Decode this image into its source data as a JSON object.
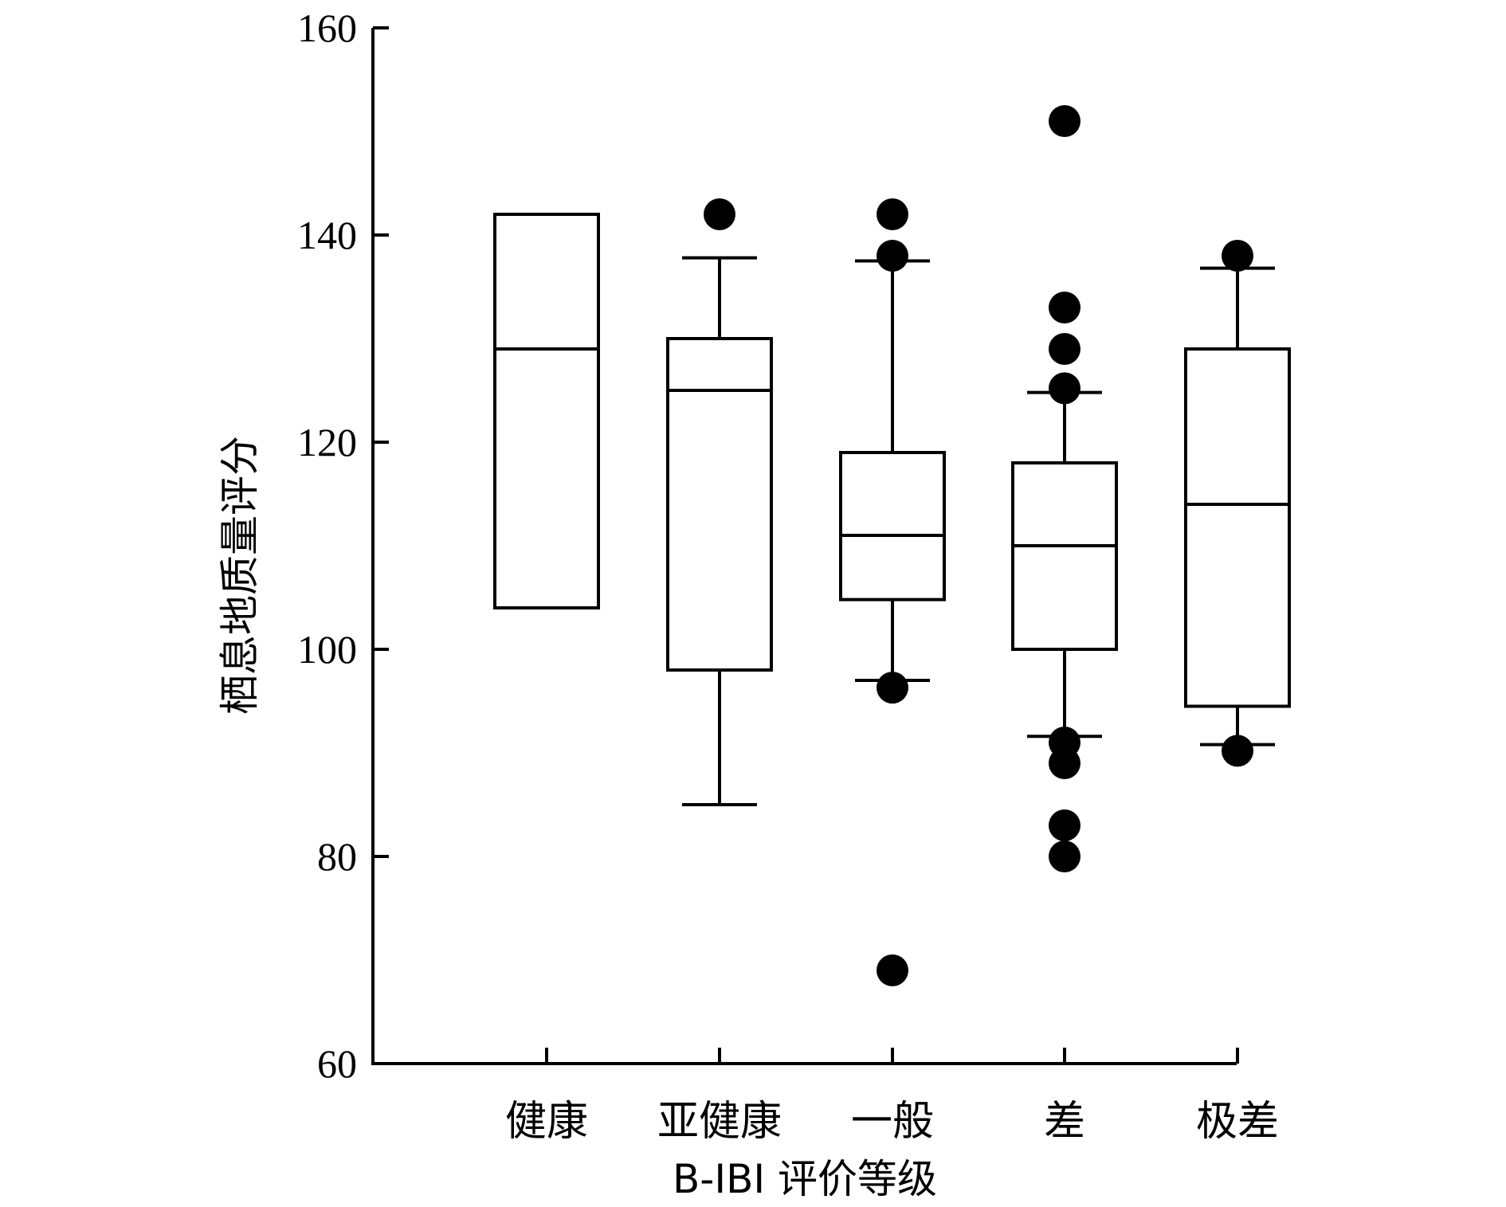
{
  "chart_data": {
    "type": "box",
    "xlabel": "B-IBI 评价等级",
    "ylabel": "栖息地质量评分",
    "ylim": [
      60,
      160
    ],
    "yticks": [
      60,
      80,
      100,
      120,
      140,
      160
    ],
    "categories": [
      "健康",
      "亚健康",
      "一般",
      "差",
      "极差"
    ],
    "boxes": [
      {
        "category": "健康",
        "q1": 104,
        "median": 129,
        "q3": 142,
        "whisker_low": null,
        "whisker_high": null,
        "outliers": []
      },
      {
        "category": "亚健康",
        "q1": 98,
        "median": 125,
        "q3": 130,
        "whisker_low": 85,
        "whisker_high": 137.8,
        "outliers": [
          142
        ]
      },
      {
        "category": "一般",
        "q1": 104.8,
        "median": 111,
        "q3": 119,
        "whisker_low": 97,
        "whisker_high": 137.5,
        "outliers": [
          142,
          138,
          96.3,
          69
        ]
      },
      {
        "category": "差",
        "q1": 100,
        "median": 110,
        "q3": 118,
        "whisker_low": 91.6,
        "whisker_high": 124.8,
        "outliers": [
          151,
          133,
          129,
          125.2,
          91,
          89,
          83,
          80
        ]
      },
      {
        "category": "极差",
        "q1": 94.5,
        "median": 114,
        "q3": 129,
        "whisker_low": 90.8,
        "whisker_high": 136.8,
        "outliers": [
          138,
          90.2
        ]
      }
    ],
    "grid": false,
    "legend": "none"
  }
}
